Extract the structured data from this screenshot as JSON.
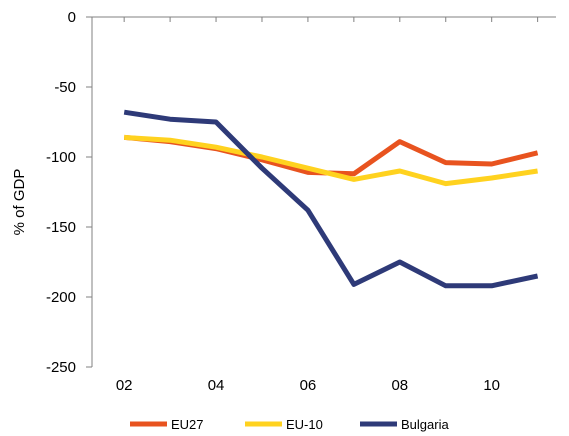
{
  "chart_data": {
    "type": "line",
    "title": "",
    "xlabel": "",
    "ylabel": "% of GDP",
    "x": [
      2,
      3,
      4,
      5,
      6,
      7,
      8,
      9,
      10,
      11
    ],
    "x_tick_values": [
      2,
      4,
      6,
      8,
      10
    ],
    "x_tick_labels": [
      "02",
      "04",
      "06",
      "08",
      "10"
    ],
    "xlim": [
      1.3,
      11.4
    ],
    "ylim": [
      -250,
      0
    ],
    "y_ticks": [
      0,
      -50,
      -100,
      -150,
      -200,
      -250
    ],
    "y_tick_labels": [
      "0",
      "-50",
      "-100",
      "-150",
      "-200",
      "-250"
    ],
    "grid": false,
    "legend_position": "bottom",
    "series": [
      {
        "name": "EU27",
        "color": "#E8531F",
        "values": [
          -86,
          -89,
          -94,
          -102,
          -111,
          -112,
          -89,
          -104,
          -105,
          -97
        ]
      },
      {
        "name": "EU-10",
        "color": "#FFD21F",
        "values": [
          -86,
          -88,
          -93,
          -100,
          -108,
          -116,
          -110,
          -119,
          -115,
          -110
        ]
      },
      {
        "name": "Bulgaria",
        "color": "#2E3A78",
        "values": [
          -68,
          -73,
          -75,
          -108,
          -138,
          -191,
          -175,
          -192,
          -192,
          -185
        ]
      }
    ]
  }
}
